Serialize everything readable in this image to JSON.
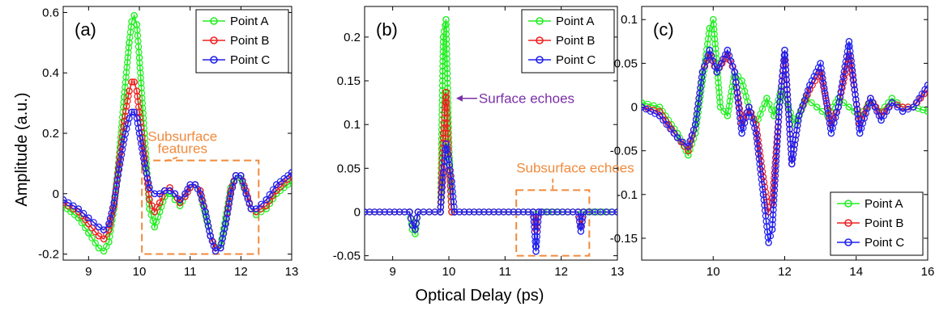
{
  "figure": {
    "ylabel": "Amplitude (a.u.)",
    "xlabel": "Optical Delay (ps)"
  },
  "colors": {
    "Point A": "#22ee22",
    "Point B": "#ee2020",
    "Point C": "#2020ee",
    "annotation": "#f08a3c",
    "surface_annotation": "#7a2fa8"
  },
  "chart_data": [
    {
      "type": "line",
      "panel_label": "(a)",
      "xlim": [
        8.5,
        13
      ],
      "ylim": [
        -0.22,
        0.62
      ],
      "xticks": [
        9,
        10,
        11,
        12,
        13
      ],
      "yticks": [
        -0.2,
        0,
        0.2,
        0.4,
        0.6
      ],
      "ytick_labels": [
        "-0.2",
        "0",
        "0.2",
        "0.4",
        "0.6"
      ],
      "legend_position": "top-right",
      "marker": "circle",
      "series": [
        {
          "name": "Point A",
          "x": [
            8.5,
            8.8,
            9.0,
            9.2,
            9.3,
            9.4,
            9.5,
            9.6,
            9.7,
            9.8,
            9.85,
            9.9,
            9.95,
            10.0,
            10.1,
            10.2,
            10.3,
            10.4,
            10.5,
            10.6,
            10.7,
            10.8,
            10.9,
            11.0,
            11.1,
            11.2,
            11.3,
            11.4,
            11.5,
            11.6,
            11.7,
            11.8,
            11.9,
            12.0,
            12.1,
            12.2,
            12.3,
            12.5,
            12.7,
            13.0
          ],
          "y": [
            -0.04,
            -0.08,
            -0.13,
            -0.18,
            -0.19,
            -0.16,
            -0.05,
            0.12,
            0.32,
            0.5,
            0.57,
            0.59,
            0.56,
            0.45,
            0.2,
            -0.05,
            -0.11,
            -0.06,
            -0.01,
            0.0,
            -0.02,
            -0.04,
            -0.01,
            0.02,
            0.03,
            0.0,
            -0.07,
            -0.14,
            -0.18,
            -0.17,
            -0.08,
            0.02,
            0.06,
            0.05,
            0.0,
            -0.05,
            -0.07,
            -0.05,
            0.0,
            0.04
          ]
        },
        {
          "name": "Point B",
          "x": [
            8.5,
            8.8,
            9.0,
            9.2,
            9.3,
            9.4,
            9.5,
            9.6,
            9.7,
            9.8,
            9.85,
            9.9,
            9.95,
            10.0,
            10.1,
            10.2,
            10.3,
            10.4,
            10.5,
            10.6,
            10.7,
            10.8,
            10.9,
            11.0,
            11.1,
            11.2,
            11.3,
            11.4,
            11.5,
            11.6,
            11.7,
            11.8,
            11.9,
            12.0,
            12.1,
            12.2,
            12.3,
            12.5,
            12.7,
            13.0
          ],
          "y": [
            -0.03,
            -0.06,
            -0.1,
            -0.14,
            -0.15,
            -0.12,
            -0.04,
            0.1,
            0.24,
            0.34,
            0.37,
            0.37,
            0.34,
            0.27,
            0.12,
            -0.02,
            -0.06,
            -0.03,
            0.01,
            0.02,
            0.0,
            -0.03,
            -0.01,
            0.02,
            0.03,
            0.01,
            -0.06,
            -0.14,
            -0.18,
            -0.18,
            -0.1,
            0.01,
            0.06,
            0.06,
            0.01,
            -0.05,
            -0.06,
            -0.04,
            0.01,
            0.06
          ]
        },
        {
          "name": "Point C",
          "x": [
            8.5,
            8.8,
            9.0,
            9.2,
            9.3,
            9.4,
            9.5,
            9.6,
            9.7,
            9.8,
            9.85,
            9.9,
            9.95,
            10.0,
            10.1,
            10.2,
            10.3,
            10.4,
            10.5,
            10.6,
            10.7,
            10.8,
            10.9,
            11.0,
            11.1,
            11.2,
            11.3,
            11.4,
            11.5,
            11.6,
            11.7,
            11.8,
            11.9,
            12.0,
            12.1,
            12.2,
            12.3,
            12.5,
            12.7,
            13.0
          ],
          "y": [
            -0.02,
            -0.05,
            -0.08,
            -0.11,
            -0.12,
            -0.1,
            -0.03,
            0.08,
            0.18,
            0.25,
            0.27,
            0.27,
            0.25,
            0.2,
            0.1,
            0.02,
            0.0,
            0.0,
            0.01,
            0.01,
            0.0,
            -0.02,
            0.0,
            0.03,
            0.03,
            0.0,
            -0.06,
            -0.14,
            -0.19,
            -0.18,
            -0.1,
            0.0,
            0.06,
            0.06,
            0.0,
            -0.05,
            -0.05,
            -0.02,
            0.03,
            0.07
          ]
        }
      ],
      "annotations": [
        {
          "text": "Subsurface",
          "anchor_x": 10.85,
          "anchor_y": 0.175
        },
        {
          "text": "features",
          "anchor_x": 10.85,
          "anchor_y": 0.135
        }
      ],
      "box": {
        "x": [
          10.05,
          12.35
        ],
        "y": [
          -0.2,
          0.11
        ]
      }
    },
    {
      "type": "line",
      "panel_label": "(b)",
      "xlim": [
        8.5,
        13
      ],
      "ylim": [
        -0.055,
        0.235
      ],
      "xticks": [
        9,
        10,
        11,
        12,
        13
      ],
      "yticks": [
        -0.05,
        0,
        0.05,
        0.1,
        0.15,
        0.2
      ],
      "ytick_labels": [
        "-0.05",
        "0",
        "0.05",
        "0.1",
        "0.15",
        "0.2"
      ],
      "legend_position": "top-right",
      "marker": "circle",
      "series": [
        {
          "name": "Point A",
          "x": [
            8.5,
            9.3,
            9.35,
            9.4,
            9.45,
            9.85,
            9.9,
            9.95,
            10.0,
            10.05,
            10.1,
            13.0
          ],
          "y": [
            0,
            0,
            -0.02,
            -0.025,
            0,
            0,
            0.2,
            0.22,
            0.08,
            0,
            0,
            0
          ]
        },
        {
          "name": "Point B",
          "x": [
            8.5,
            9.3,
            9.35,
            9.4,
            9.45,
            9.85,
            9.9,
            9.95,
            10.0,
            10.05,
            10.1,
            11.5,
            11.55,
            11.6,
            11.65,
            12.3,
            12.35,
            12.4,
            13.0
          ],
          "y": [
            0,
            0,
            -0.015,
            -0.02,
            0,
            0,
            0.09,
            0.137,
            0.06,
            0,
            0,
            0,
            -0.02,
            0,
            0,
            0,
            -0.015,
            0,
            0
          ]
        },
        {
          "name": "Point C",
          "x": [
            8.5,
            9.3,
            9.35,
            9.4,
            9.45,
            9.85,
            9.9,
            9.95,
            10.0,
            10.05,
            10.1,
            11.5,
            11.55,
            11.6,
            11.65,
            12.3,
            12.35,
            12.4,
            13.0
          ],
          "y": [
            0,
            0,
            -0.015,
            -0.02,
            0,
            0,
            0.045,
            0.078,
            0.06,
            0.035,
            0,
            0,
            -0.045,
            0,
            0,
            0,
            -0.022,
            0,
            0
          ]
        }
      ],
      "annotations": [
        {
          "text": "Surface echoes",
          "anchor_x": 10.1,
          "anchor_y": 0.13
        },
        {
          "text": "Subsurface echoes",
          "anchor_x": 11.2,
          "anchor_y": 0.045
        }
      ],
      "box": {
        "x": [
          11.2,
          12.5
        ],
        "y": [
          -0.05,
          0.025
        ]
      }
    },
    {
      "type": "line",
      "panel_label": "(c)",
      "xlim": [
        8,
        16
      ],
      "ylim": [
        -0.175,
        0.115
      ],
      "xticks": [
        10,
        12,
        14,
        16
      ],
      "yticks": [
        -0.15,
        -0.1,
        -0.05,
        0,
        0.05,
        0.1
      ],
      "ytick_labels": [
        "-0.15",
        "-0.1",
        "-0.05",
        "0",
        "0.05",
        "0.1"
      ],
      "legend_position": "bottom-right",
      "marker": "circle",
      "series": [
        {
          "name": "Point A",
          "x": [
            8.0,
            8.5,
            9.0,
            9.3,
            9.5,
            9.7,
            9.9,
            10.0,
            10.2,
            10.4,
            10.6,
            10.8,
            11.0,
            11.2,
            11.5,
            11.7,
            11.9,
            12.1,
            12.3,
            12.6,
            12.9,
            13.2,
            13.5,
            13.8,
            14.1,
            14.4,
            14.7,
            15.0,
            15.3,
            15.6,
            16.0
          ],
          "y": [
            0.005,
            0.0,
            -0.03,
            -0.055,
            -0.03,
            0.03,
            0.09,
            0.1,
            0.0,
            -0.01,
            0.04,
            0.03,
            0.0,
            -0.02,
            0.01,
            -0.01,
            0.02,
            0.0,
            -0.02,
            0.01,
            0.0,
            -0.01,
            0.01,
            0.0,
            -0.01,
            0.005,
            -0.005,
            0.01,
            0.0,
            0.0,
            -0.005
          ]
        },
        {
          "name": "Point B",
          "x": [
            8.0,
            8.5,
            9.0,
            9.3,
            9.5,
            9.7,
            9.9,
            10.1,
            10.4,
            10.6,
            10.8,
            11.0,
            11.2,
            11.4,
            11.55,
            11.65,
            11.85,
            12.0,
            12.2,
            12.4,
            12.7,
            13.0,
            13.3,
            13.5,
            13.8,
            14.1,
            14.4,
            14.7,
            15.0,
            15.3,
            15.6,
            16.0
          ],
          "y": [
            0.0,
            -0.005,
            -0.035,
            -0.05,
            -0.02,
            0.04,
            0.06,
            0.04,
            0.06,
            0.04,
            -0.02,
            0.0,
            -0.02,
            -0.08,
            -0.12,
            -0.11,
            0.0,
            0.06,
            -0.065,
            -0.01,
            0.02,
            0.04,
            -0.02,
            0.0,
            0.06,
            -0.02,
            0.01,
            -0.01,
            0.005,
            0.0,
            0.0,
            0.02
          ]
        },
        {
          "name": "Point C",
          "x": [
            8.0,
            8.5,
            9.0,
            9.3,
            9.5,
            9.7,
            9.9,
            10.1,
            10.4,
            10.6,
            10.8,
            11.0,
            11.2,
            11.4,
            11.55,
            11.65,
            11.85,
            12.0,
            12.2,
            12.4,
            12.7,
            13.0,
            13.3,
            13.5,
            13.8,
            14.1,
            14.4,
            14.7,
            15.0,
            15.3,
            15.6,
            16.0
          ],
          "y": [
            0.0,
            -0.01,
            -0.035,
            -0.045,
            -0.02,
            0.04,
            0.065,
            0.04,
            0.065,
            0.04,
            -0.03,
            0.0,
            -0.03,
            -0.1,
            -0.155,
            -0.14,
            0.0,
            0.065,
            -0.065,
            -0.01,
            0.025,
            0.05,
            -0.03,
            0.0,
            0.075,
            -0.03,
            0.01,
            -0.015,
            0.005,
            -0.005,
            0.0,
            0.025
          ]
        }
      ]
    }
  ]
}
